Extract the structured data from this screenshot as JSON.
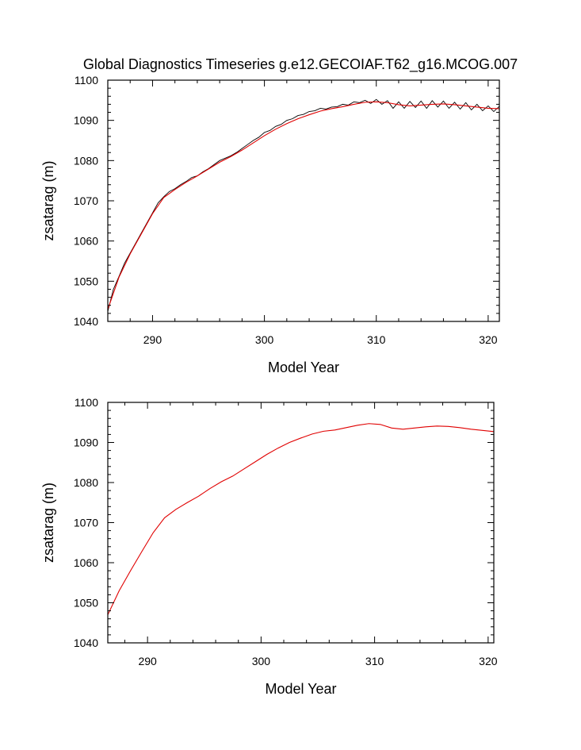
{
  "figure": {
    "title": "Global Diagnostics Timeseries g.e12.GECOIAF.T62_g16.MCOG.007"
  },
  "colors": {
    "raw_series": "#000000",
    "smoothed_series": "#e00000"
  },
  "chart_data": [
    {
      "type": "line",
      "title": "Global Diagnostics Timeseries g.e12.GECOIAF.T62_g16.MCOG.007",
      "xlabel": "Model Year",
      "ylabel": "zsatarag (m)",
      "xlim": [
        286,
        321
      ],
      "ylim": [
        1040,
        1100
      ],
      "xticks": [
        290,
        300,
        310,
        320
      ],
      "yticks": [
        1040,
        1050,
        1060,
        1070,
        1080,
        1090,
        1100
      ],
      "grid": false,
      "series": [
        {
          "color": "#000000",
          "kind": "monthly",
          "x": [
            286.0,
            286.5,
            287.0,
            287.5,
            288.0,
            288.5,
            289.0,
            289.5,
            290.0,
            290.5,
            291.0,
            291.5,
            292.0,
            292.5,
            293.0,
            293.5,
            294.0,
            294.5,
            295.0,
            295.5,
            296.0,
            296.5,
            297.0,
            297.5,
            298.0,
            298.5,
            299.0,
            299.5,
            300.0,
            300.5,
            301.0,
            301.5,
            302.0,
            302.5,
            303.0,
            303.5,
            304.0,
            304.5,
            305.0,
            305.5,
            306.0,
            306.5,
            307.0,
            307.5,
            308.0,
            308.5,
            309.0,
            309.5,
            310.0,
            310.5,
            311.0,
            311.5,
            312.0,
            312.5,
            313.0,
            313.5,
            314.0,
            314.5,
            315.0,
            315.5,
            316.0,
            316.5,
            317.0,
            317.5,
            318.0,
            318.5,
            319.0,
            319.5,
            320.0,
            320.5,
            321.0
          ],
          "y": [
            1042.5,
            1048.0,
            1051.2,
            1054.5,
            1057.0,
            1059.5,
            1062.0,
            1064.5,
            1067.0,
            1069.5,
            1071.0,
            1072.3,
            1073.0,
            1074.0,
            1074.8,
            1075.8,
            1076.2,
            1077.2,
            1078.0,
            1079.0,
            1080.0,
            1080.6,
            1081.2,
            1082.0,
            1083.0,
            1084.0,
            1085.0,
            1085.8,
            1087.0,
            1087.5,
            1088.5,
            1089.0,
            1090.0,
            1090.4,
            1091.2,
            1091.5,
            1092.2,
            1092.4,
            1093.0,
            1092.8,
            1093.3,
            1093.4,
            1094.0,
            1093.8,
            1094.6,
            1094.4,
            1095.0,
            1094.2,
            1095.2,
            1094.0,
            1094.9,
            1093.0,
            1094.6,
            1093.0,
            1094.7,
            1093.2,
            1094.8,
            1093.0,
            1094.9,
            1093.3,
            1094.8,
            1093.0,
            1094.5,
            1092.8,
            1094.4,
            1092.6,
            1094.0,
            1092.4,
            1093.6,
            1092.2,
            1093.5
          ]
        },
        {
          "color": "#e00000",
          "kind": "smoothed",
          "x": [
            286.0,
            287.0,
            288.0,
            289.0,
            290.0,
            291.0,
            292.0,
            293.0,
            294.0,
            295.0,
            296.0,
            297.0,
            298.0,
            299.0,
            300.0,
            301.0,
            302.0,
            303.0,
            304.0,
            305.0,
            306.0,
            307.0,
            308.0,
            309.0,
            310.0,
            311.0,
            312.0,
            313.0,
            314.0,
            315.0,
            316.0,
            317.0,
            318.0,
            319.0,
            320.0,
            321.0
          ],
          "y": [
            1043.0,
            1051.0,
            1056.8,
            1061.8,
            1066.8,
            1070.8,
            1072.8,
            1074.6,
            1076.2,
            1077.9,
            1079.6,
            1081.0,
            1082.6,
            1084.4,
            1086.2,
            1087.8,
            1089.2,
            1090.4,
            1091.4,
            1092.3,
            1092.9,
            1093.4,
            1094.0,
            1094.5,
            1094.6,
            1094.4,
            1093.9,
            1093.6,
            1093.8,
            1094.0,
            1094.1,
            1093.9,
            1093.6,
            1093.3,
            1093.0,
            1092.9
          ]
        }
      ]
    },
    {
      "type": "line",
      "xlabel": "Model Year",
      "ylabel": "zsatarag (m)",
      "xlim": [
        286.5,
        320.5
      ],
      "ylim": [
        1040,
        1100
      ],
      "xticks": [
        290,
        300,
        310,
        320
      ],
      "yticks": [
        1040,
        1050,
        1060,
        1070,
        1080,
        1090,
        1100
      ],
      "grid": false,
      "series": [
        {
          "color": "#e00000",
          "kind": "annual",
          "x": [
            286.5,
            287.5,
            288.5,
            289.5,
            290.5,
            291.5,
            292.5,
            293.5,
            294.5,
            295.5,
            296.5,
            297.5,
            298.5,
            299.5,
            300.5,
            301.5,
            302.5,
            303.5,
            304.5,
            305.5,
            306.5,
            307.5,
            308.5,
            309.5,
            310.5,
            311.5,
            312.5,
            313.5,
            314.5,
            315.5,
            316.5,
            317.5,
            318.5,
            319.5,
            320.5
          ],
          "y": [
            1047.0,
            1053.0,
            1058.0,
            1062.8,
            1067.5,
            1071.2,
            1073.3,
            1075.0,
            1076.6,
            1078.5,
            1080.2,
            1081.6,
            1083.4,
            1085.2,
            1087.0,
            1088.6,
            1090.0,
            1091.1,
            1092.1,
            1092.8,
            1093.1,
            1093.7,
            1094.3,
            1094.7,
            1094.5,
            1093.6,
            1093.3,
            1093.6,
            1093.9,
            1094.1,
            1094.0,
            1093.7,
            1093.3,
            1093.0,
            1092.7
          ]
        }
      ]
    }
  ]
}
